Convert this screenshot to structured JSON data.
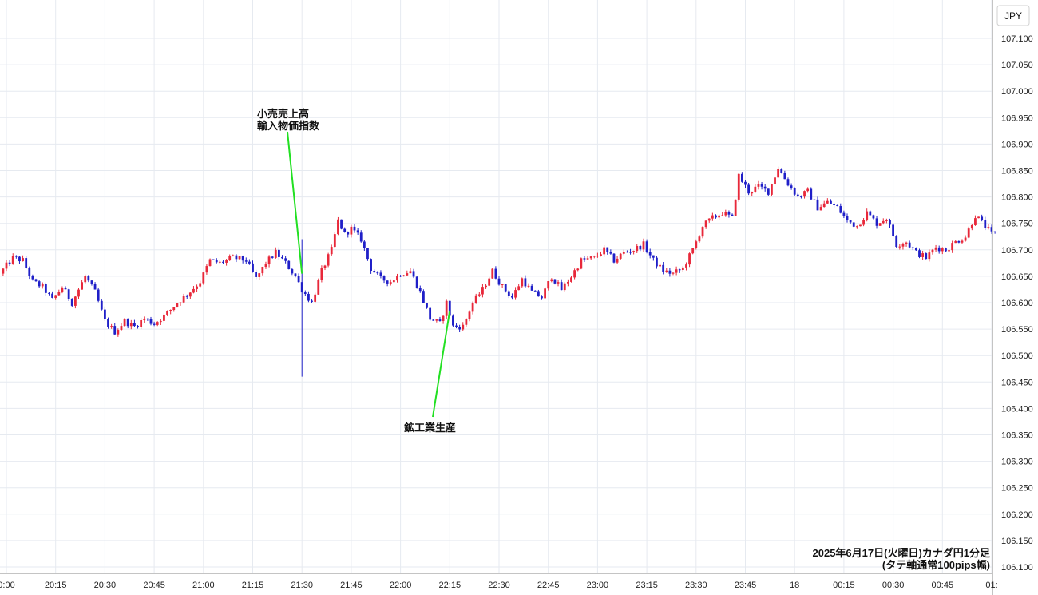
{
  "chart_data": {
    "type": "candlestick",
    "currency_label": "JPY",
    "caption_line1": "2025年6月17日(火曜日)カナダ円1分足",
    "caption_line2": "(タテ軸通常100pips幅)",
    "y_ticks": [
      "107.100",
      "107.050",
      "107.000",
      "106.950",
      "106.900",
      "106.850",
      "106.800",
      "106.750",
      "106.700",
      "106.650",
      "106.600",
      "106.550",
      "106.500",
      "106.450",
      "106.400",
      "106.350",
      "106.300",
      "106.250",
      "106.200",
      "106.150",
      "106.100"
    ],
    "ylim": [
      106.09,
      107.15
    ],
    "x_ticks": [
      {
        "label": "0:00",
        "time": "20:00"
      },
      {
        "label": "20:15",
        "time": "20:15"
      },
      {
        "label": "20:30",
        "time": "20:30"
      },
      {
        "label": "20:45",
        "time": "20:45"
      },
      {
        "label": "21:00",
        "time": "21:00"
      },
      {
        "label": "21:15",
        "time": "21:15"
      },
      {
        "label": "21:30",
        "time": "21:30"
      },
      {
        "label": "21:45",
        "time": "21:45"
      },
      {
        "label": "22:00",
        "time": "22:00"
      },
      {
        "label": "22:15",
        "time": "22:15"
      },
      {
        "label": "22:30",
        "time": "22:30"
      },
      {
        "label": "22:45",
        "time": "22:45"
      },
      {
        "label": "23:00",
        "time": "23:00"
      },
      {
        "label": "23:15",
        "time": "23:15"
      },
      {
        "label": "23:30",
        "time": "23:30"
      },
      {
        "label": "23:45",
        "time": "23:45"
      },
      {
        "label": "18",
        "time": "24:00"
      },
      {
        "label": "00:15",
        "time": "24:15"
      },
      {
        "label": "00:30",
        "time": "24:30"
      },
      {
        "label": "00:45",
        "time": "24:45"
      },
      {
        "label": "01:",
        "time": "25:00"
      }
    ],
    "annotations": [
      {
        "lines": [
          "小売売上高",
          "輸入物価指数"
        ],
        "time": "21:30",
        "price": 106.655
      },
      {
        "lines": [
          "鉱工業生産"
        ],
        "time": "22:15",
        "price": 106.585
      }
    ],
    "spike": {
      "time": "21:30",
      "high": 106.72,
      "low": 106.46
    },
    "path": [
      [
        "19:59",
        106.655
      ],
      [
        "20:03",
        106.685
      ],
      [
        "20:06",
        106.68
      ],
      [
        "20:09",
        106.64
      ],
      [
        "20:12",
        106.63
      ],
      [
        "20:15",
        106.605
      ],
      [
        "20:18",
        106.63
      ],
      [
        "20:21",
        106.6
      ],
      [
        "20:25",
        106.65
      ],
      [
        "20:28",
        106.62
      ],
      [
        "20:31",
        106.565
      ],
      [
        "20:34",
        106.545
      ],
      [
        "20:37",
        106.565
      ],
      [
        "20:40",
        106.555
      ],
      [
        "20:43",
        106.57
      ],
      [
        "20:46",
        106.56
      ],
      [
        "20:50",
        106.58
      ],
      [
        "20:53",
        106.6
      ],
      [
        "20:56",
        106.615
      ],
      [
        "21:00",
        106.64
      ],
      [
        "21:03",
        106.68
      ],
      [
        "21:06",
        106.675
      ],
      [
        "21:10",
        106.685
      ],
      [
        "21:14",
        106.68
      ],
      [
        "21:17",
        106.645
      ],
      [
        "21:20",
        106.675
      ],
      [
        "21:23",
        106.695
      ],
      [
        "21:26",
        106.675
      ],
      [
        "21:29",
        106.65
      ],
      [
        "21:31",
        106.625
      ],
      [
        "21:34",
        106.6
      ],
      [
        "21:37",
        106.66
      ],
      [
        "21:40",
        106.7
      ],
      [
        "21:42",
        106.755
      ],
      [
        "21:44",
        106.73
      ],
      [
        "21:46",
        106.74
      ],
      [
        "21:49",
        106.72
      ],
      [
        "21:52",
        106.665
      ],
      [
        "21:55",
        106.645
      ],
      [
        "21:58",
        106.64
      ],
      [
        "22:01",
        106.655
      ],
      [
        "22:04",
        106.66
      ],
      [
        "22:07",
        106.62
      ],
      [
        "22:10",
        106.57
      ],
      [
        "22:13",
        106.56
      ],
      [
        "22:15",
        106.6
      ],
      [
        "22:17",
        106.555
      ],
      [
        "22:20",
        106.555
      ],
      [
        "22:23",
        106.6
      ],
      [
        "22:26",
        106.625
      ],
      [
        "22:29",
        106.66
      ],
      [
        "22:32",
        106.63
      ],
      [
        "22:35",
        106.61
      ],
      [
        "22:38",
        106.645
      ],
      [
        "22:41",
        106.62
      ],
      [
        "22:44",
        106.61
      ],
      [
        "22:47",
        106.65
      ],
      [
        "22:50",
        106.625
      ],
      [
        "22:53",
        106.65
      ],
      [
        "22:56",
        106.68
      ],
      [
        "23:00",
        106.685
      ],
      [
        "23:03",
        106.7
      ],
      [
        "23:06",
        106.68
      ],
      [
        "23:09",
        106.695
      ],
      [
        "23:12",
        106.7
      ],
      [
        "23:15",
        106.71
      ],
      [
        "23:18",
        106.68
      ],
      [
        "23:21",
        106.66
      ],
      [
        "23:24",
        106.655
      ],
      [
        "23:27",
        106.665
      ],
      [
        "23:30",
        106.7
      ],
      [
        "23:33",
        106.745
      ],
      [
        "23:36",
        106.76
      ],
      [
        "23:39",
        106.77
      ],
      [
        "23:42",
        106.76
      ],
      [
        "23:44",
        106.84
      ],
      [
        "23:47",
        106.81
      ],
      [
        "23:50",
        106.82
      ],
      [
        "23:53",
        106.81
      ],
      [
        "23:56",
        106.855
      ],
      [
        "23:59",
        106.825
      ],
      [
        "24:02",
        106.8
      ],
      [
        "24:05",
        106.81
      ],
      [
        "24:08",
        106.78
      ],
      [
        "24:11",
        106.79
      ],
      [
        "24:14",
        106.78
      ],
      [
        "24:17",
        106.755
      ],
      [
        "24:20",
        106.745
      ],
      [
        "24:23",
        106.77
      ],
      [
        "24:26",
        106.75
      ],
      [
        "24:29",
        106.76
      ],
      [
        "24:32",
        106.71
      ],
      [
        "24:35",
        106.715
      ],
      [
        "24:38",
        106.695
      ],
      [
        "24:41",
        106.685
      ],
      [
        "24:44",
        106.705
      ],
      [
        "24:47",
        106.7
      ],
      [
        "24:50",
        106.715
      ],
      [
        "24:53",
        106.725
      ],
      [
        "24:56",
        106.765
      ],
      [
        "24:59",
        106.745
      ],
      [
        "25:01",
        106.73
      ]
    ],
    "up_color": "#e8283a",
    "down_color": "#1f1fc8",
    "annotation_line_color": "#22e022",
    "grid": true
  }
}
